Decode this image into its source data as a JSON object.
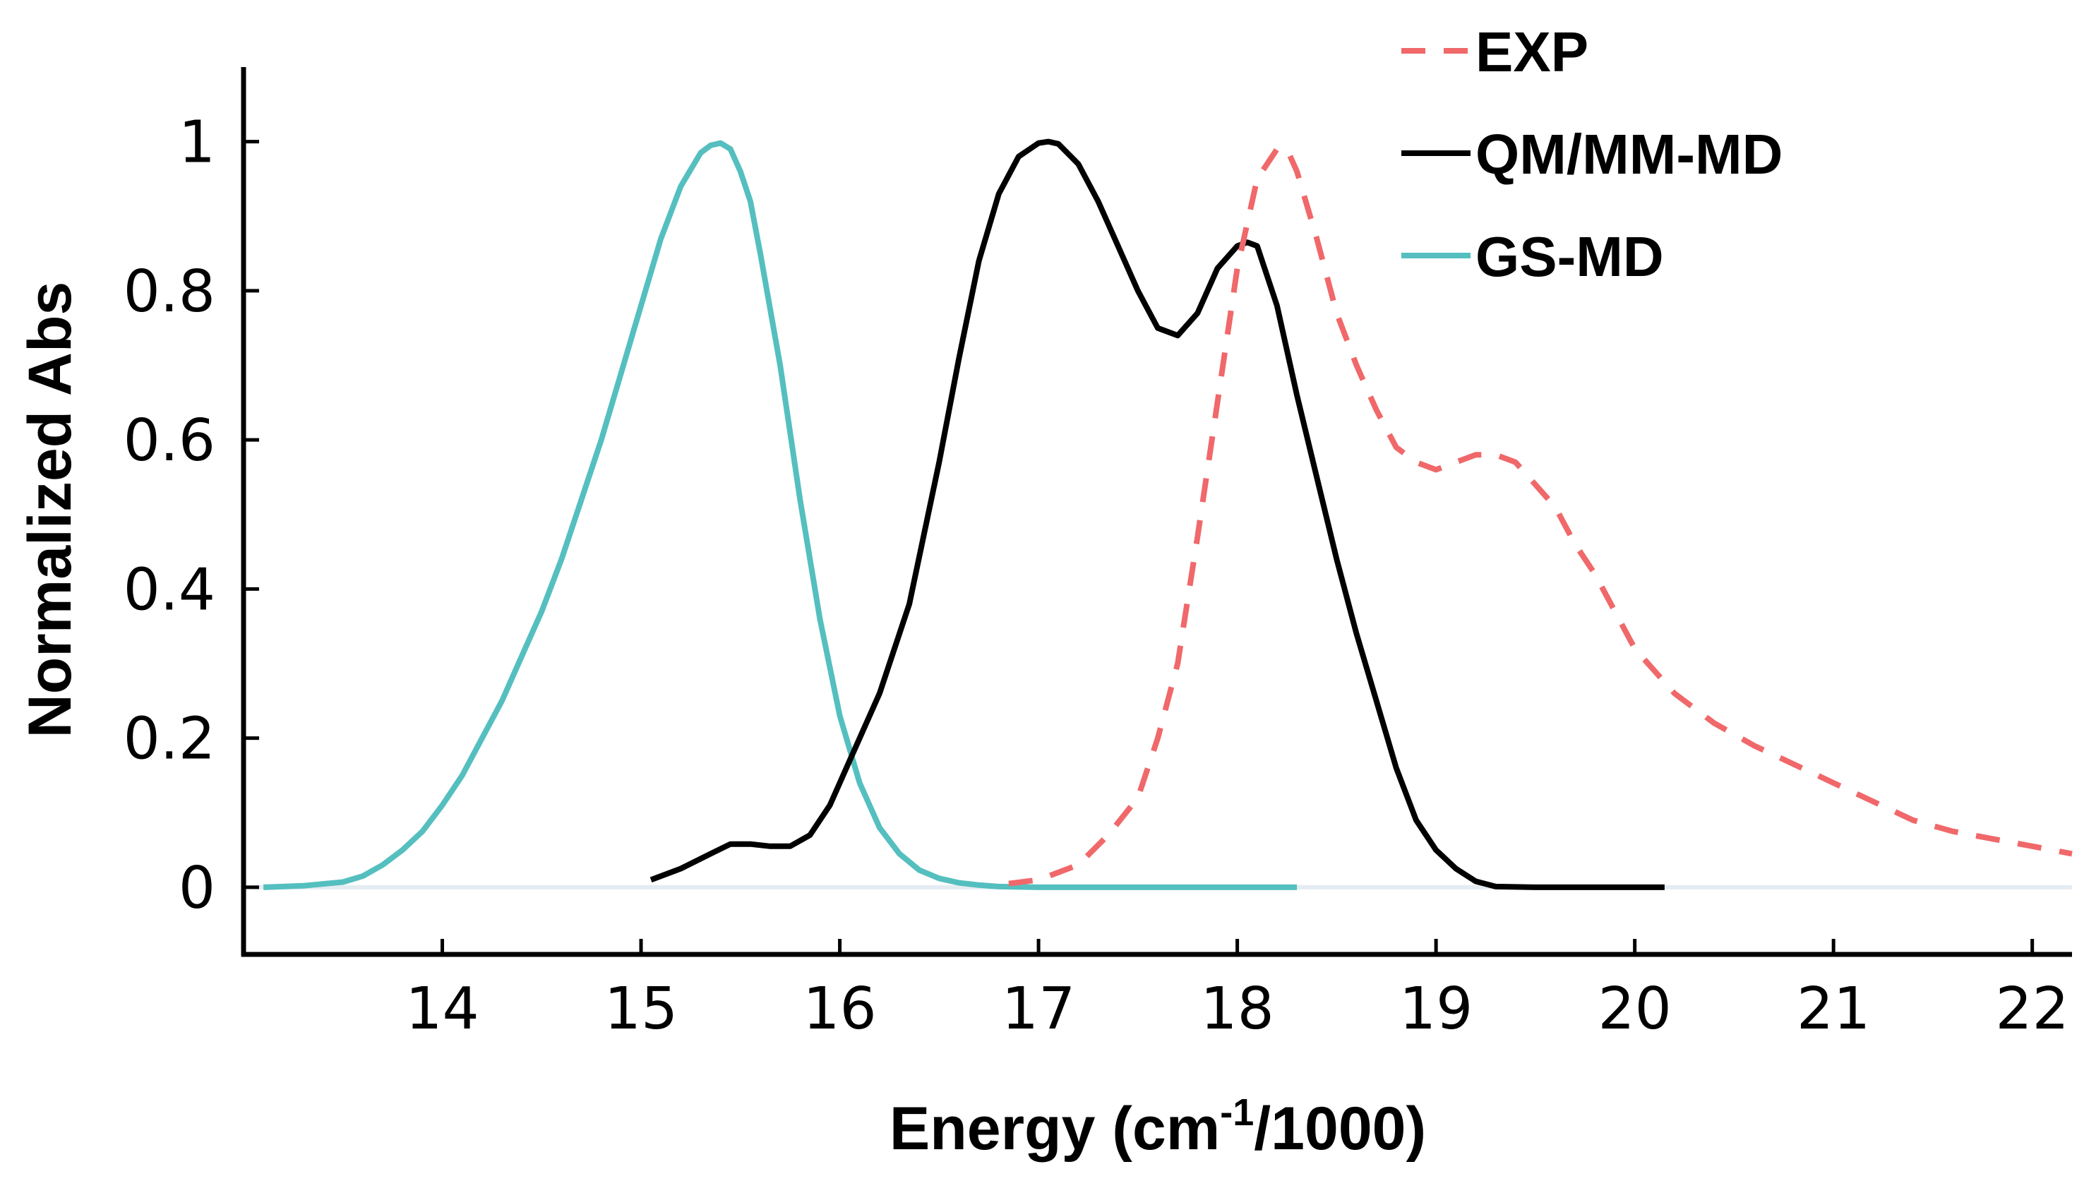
{
  "chart_data": {
    "type": "line",
    "title": "",
    "xlabel": "Energy (cm",
    "xlabel_sup": "-1",
    "xlabel_tail": "/1000)",
    "ylabel": "Normalized Abs",
    "xlim": [
      13.0,
      22.2
    ],
    "ylim": [
      -0.09,
      1.1
    ],
    "xticks": [
      14,
      15,
      16,
      17,
      18,
      19,
      20,
      21,
      22
    ],
    "xtick_labels": [
      "14",
      "15",
      "16",
      "17",
      "18",
      "19",
      "20",
      "21",
      "22"
    ],
    "yticks": [
      0,
      0.2,
      0.4,
      0.6,
      0.8,
      1
    ],
    "ytick_labels": [
      "0",
      "0.2",
      "0.4",
      "0.6",
      "0.8",
      "1"
    ],
    "baseline": 0,
    "legend_position": "top-right",
    "series": [
      {
        "name": "EXP",
        "color": "#f0686a",
        "style": "dashed",
        "x": [
          16.85,
          17.0,
          17.2,
          17.35,
          17.5,
          17.6,
          17.7,
          17.8,
          17.9,
          18.0,
          18.1,
          18.2,
          18.25,
          18.3,
          18.4,
          18.5,
          18.6,
          18.7,
          18.8,
          18.9,
          19.0,
          19.1,
          19.2,
          19.3,
          19.4,
          19.5,
          19.6,
          19.7,
          19.8,
          19.9,
          20.0,
          20.2,
          20.4,
          20.6,
          20.8,
          21.0,
          21.2,
          21.4,
          21.6,
          21.8,
          22.0,
          22.2
        ],
        "y": [
          0.005,
          0.01,
          0.03,
          0.07,
          0.12,
          0.2,
          0.3,
          0.47,
          0.65,
          0.83,
          0.95,
          0.99,
          0.99,
          0.96,
          0.87,
          0.77,
          0.7,
          0.64,
          0.59,
          0.57,
          0.56,
          0.57,
          0.58,
          0.58,
          0.57,
          0.54,
          0.51,
          0.46,
          0.42,
          0.37,
          0.32,
          0.26,
          0.22,
          0.19,
          0.165,
          0.14,
          0.115,
          0.09,
          0.075,
          0.065,
          0.055,
          0.045
        ]
      },
      {
        "name": "QM/MM-MD",
        "color": "#000000",
        "style": "solid",
        "x": [
          15.05,
          15.2,
          15.35,
          15.45,
          15.55,
          15.65,
          15.75,
          15.85,
          15.95,
          16.05,
          16.2,
          16.35,
          16.5,
          16.6,
          16.7,
          16.8,
          16.9,
          17.0,
          17.05,
          17.1,
          17.2,
          17.3,
          17.4,
          17.5,
          17.6,
          17.7,
          17.8,
          17.9,
          18.0,
          18.05,
          18.1,
          18.2,
          18.3,
          18.4,
          18.5,
          18.6,
          18.7,
          18.8,
          18.9,
          19.0,
          19.1,
          19.2,
          19.3,
          19.5,
          19.8,
          20.15
        ],
        "y": [
          0.01,
          0.025,
          0.045,
          0.058,
          0.058,
          0.055,
          0.055,
          0.07,
          0.11,
          0.17,
          0.26,
          0.38,
          0.57,
          0.71,
          0.84,
          0.93,
          0.98,
          0.998,
          1.0,
          0.997,
          0.97,
          0.92,
          0.86,
          0.8,
          0.75,
          0.74,
          0.77,
          0.83,
          0.86,
          0.865,
          0.86,
          0.78,
          0.66,
          0.55,
          0.44,
          0.34,
          0.25,
          0.16,
          0.09,
          0.05,
          0.025,
          0.008,
          0.001,
          0.0,
          0.0,
          0.0
        ]
      },
      {
        "name": "GS-MD",
        "color": "#55bfbf",
        "style": "solid",
        "x": [
          13.1,
          13.3,
          13.5,
          13.6,
          13.7,
          13.8,
          13.9,
          14.0,
          14.1,
          14.2,
          14.3,
          14.4,
          14.5,
          14.6,
          14.7,
          14.8,
          14.9,
          15.0,
          15.1,
          15.2,
          15.3,
          15.35,
          15.4,
          15.45,
          15.5,
          15.55,
          15.6,
          15.7,
          15.8,
          15.9,
          16.0,
          16.1,
          16.2,
          16.3,
          16.4,
          16.5,
          16.6,
          16.7,
          16.8,
          17.0,
          17.5,
          18.3
        ],
        "y": [
          0.0,
          0.002,
          0.007,
          0.015,
          0.03,
          0.05,
          0.075,
          0.11,
          0.15,
          0.2,
          0.25,
          0.31,
          0.37,
          0.44,
          0.52,
          0.6,
          0.69,
          0.78,
          0.87,
          0.94,
          0.985,
          0.995,
          0.998,
          0.99,
          0.96,
          0.92,
          0.85,
          0.7,
          0.52,
          0.36,
          0.23,
          0.14,
          0.08,
          0.045,
          0.023,
          0.012,
          0.006,
          0.003,
          0.001,
          0.0,
          0.0,
          0.0
        ]
      }
    ]
  }
}
